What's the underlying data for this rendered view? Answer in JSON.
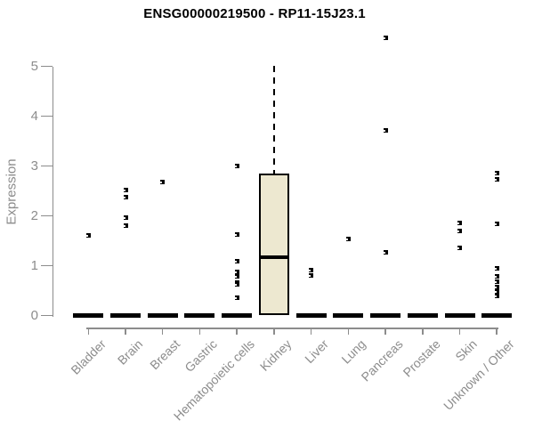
{
  "page": {
    "background": "#FFFFFF"
  },
  "chart_data": {
    "type": "boxplot",
    "title": "ENSG00000219500 - RP11-15J23.1",
    "ylabel": "Expression",
    "xlabel": "",
    "ylim": [
      0,
      5
    ],
    "yticks": [
      0,
      1,
      2,
      3,
      4,
      5
    ],
    "grid": false,
    "legend": false,
    "categories": [
      "Bladder",
      "Brain",
      "Breast",
      "Gastric",
      "Hematopoietic cells",
      "Kidney",
      "Liver",
      "Lung",
      "Pancreas",
      "Prostate",
      "Skin",
      "Unknown / Other"
    ],
    "boxes": [
      {
        "category": "Bladder",
        "low": 0,
        "q1": 0,
        "median": 0,
        "q3": 0,
        "high": 0
      },
      {
        "category": "Brain",
        "low": 0,
        "q1": 0,
        "median": 0,
        "q3": 0,
        "high": 0
      },
      {
        "category": "Breast",
        "low": 0,
        "q1": 0,
        "median": 0,
        "q3": 0,
        "high": 0
      },
      {
        "category": "Gastric",
        "low": 0,
        "q1": 0,
        "median": 0,
        "q3": 0,
        "high": 0
      },
      {
        "category": "Hematopoietic cells",
        "low": 0,
        "q1": 0,
        "median": 0,
        "q3": 0,
        "high": 0
      },
      {
        "category": "Kidney",
        "low": 0,
        "q1": 0,
        "median": 1.17,
        "q3": 2.85,
        "high": 5.03
      },
      {
        "category": "Liver",
        "low": 0,
        "q1": 0,
        "median": 0,
        "q3": 0,
        "high": 0
      },
      {
        "category": "Lung",
        "low": 0,
        "q1": 0,
        "median": 0,
        "q3": 0,
        "high": 0
      },
      {
        "category": "Pancreas",
        "low": 0,
        "q1": 0,
        "median": 0,
        "q3": 0,
        "high": 0
      },
      {
        "category": "Prostate",
        "low": 0,
        "q1": 0,
        "median": 0,
        "q3": 0,
        "high": 0
      },
      {
        "category": "Skin",
        "low": 0,
        "q1": 0,
        "median": 0,
        "q3": 0,
        "high": 0
      },
      {
        "category": "Unknown / Other",
        "low": 0,
        "q1": 0,
        "median": 0,
        "q3": 0,
        "high": 0
      }
    ],
    "outlier_points": [
      {
        "category": "Bladder",
        "values": [
          1.61
        ]
      },
      {
        "category": "Brain",
        "values": [
          2.51,
          2.38,
          1.97,
          1.81
        ]
      },
      {
        "category": "Breast",
        "values": [
          2.68
        ]
      },
      {
        "category": "Gastric",
        "values": []
      },
      {
        "category": "Hematopoietic cells",
        "values": [
          3.0,
          1.63,
          1.09,
          0.88,
          0.78,
          0.66,
          0.62,
          0.35
        ]
      },
      {
        "category": "Kidney",
        "values": []
      },
      {
        "category": "Liver",
        "values": [
          0.91,
          0.81
        ]
      },
      {
        "category": "Lung",
        "values": [
          1.54
        ]
      },
      {
        "category": "Pancreas",
        "values": [
          5.58,
          3.71,
          1.26
        ]
      },
      {
        "category": "Prostate",
        "values": []
      },
      {
        "category": "Skin",
        "values": [
          1.86,
          1.7,
          1.36
        ]
      },
      {
        "category": "Unknown / Other",
        "values": [
          2.85,
          2.73,
          1.84,
          0.94,
          0.78,
          0.68,
          0.58,
          0.48,
          0.4
        ]
      }
    ],
    "colors": {
      "box_fill": "#EDE8D0",
      "box_border": "#000000",
      "median": "#000000",
      "marker": "#000000",
      "axis": "#8C8C8C",
      "tick_text": "#8C8C8C",
      "title_text": "#000000",
      "background": "#FFFFFF"
    }
  }
}
